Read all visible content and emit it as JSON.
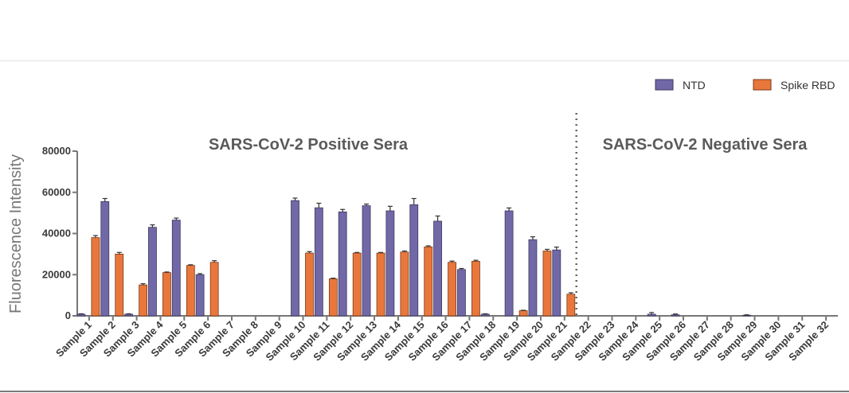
{
  "chart_data": {
    "type": "bar",
    "ylabel": "Fluorescence Intensity",
    "xlabel": "",
    "ylim": [
      0,
      80000
    ],
    "yticks": [
      "0",
      "20000",
      "40000",
      "60000",
      "80000"
    ],
    "categories": [
      "Sample 1",
      "Sample 2",
      "Sample 3",
      "Sample 4",
      "Sample 5",
      "Sample 6",
      "Sample 7",
      "Sample 8",
      "Sample 9",
      "Sample 10",
      "Sample 11",
      "Sample 12",
      "Sample 13",
      "Sample 14",
      "Sample 15",
      "Sample 16",
      "Sample 17",
      "Sample 18",
      "Sample 19",
      "Sample 20",
      "Sample 21",
      "Sample 22",
      "Sample 23",
      "Sample 24",
      "Sample 25",
      "Sample 26",
      "Sample 27",
      "Sample 28",
      "Sample 29",
      "Sample 30",
      "Sample 31",
      "Sample 32"
    ],
    "series": [
      {
        "name": "NTD",
        "color": "#7168a8",
        "values": [
          800,
          55500,
          800,
          43000,
          46500,
          20000,
          0,
          0,
          0,
          56000,
          52500,
          50500,
          53500,
          51000,
          54000,
          46000,
          22500,
          800,
          51000,
          37000,
          32000,
          0,
          0,
          0,
          800,
          500,
          0,
          0,
          300,
          0,
          0,
          0
        ],
        "errors": [
          200,
          1500,
          200,
          1200,
          1000,
          500,
          0,
          0,
          0,
          1200,
          2200,
          1200,
          800,
          2200,
          3000,
          2500,
          500,
          200,
          1400,
          1400,
          1400,
          0,
          0,
          0,
          800,
          400,
          0,
          0,
          200,
          0,
          0,
          0
        ]
      },
      {
        "name": "Spike RBD",
        "color": "#e9773c",
        "values": [
          38000,
          30000,
          15000,
          21000,
          24500,
          26000,
          0,
          0,
          0,
          30500,
          18000,
          30500,
          30500,
          31000,
          33500,
          26000,
          26500,
          0,
          2500,
          31500,
          10500,
          0,
          0,
          0,
          0,
          0,
          0,
          0,
          0,
          0,
          0,
          0
        ],
        "errors": [
          1000,
          800,
          600,
          300,
          300,
          800,
          0,
          0,
          0,
          700,
          300,
          300,
          300,
          500,
          500,
          600,
          500,
          0,
          200,
          800,
          700,
          0,
          0,
          0,
          0,
          0,
          0,
          0,
          0,
          0,
          0,
          0
        ]
      }
    ],
    "annotations": [
      "SARS-CoV-2 Positive Sera",
      "SARS-CoV-2 Negative Sera"
    ],
    "legend_position": "top-right",
    "divider_after_category": "Sample 21"
  }
}
